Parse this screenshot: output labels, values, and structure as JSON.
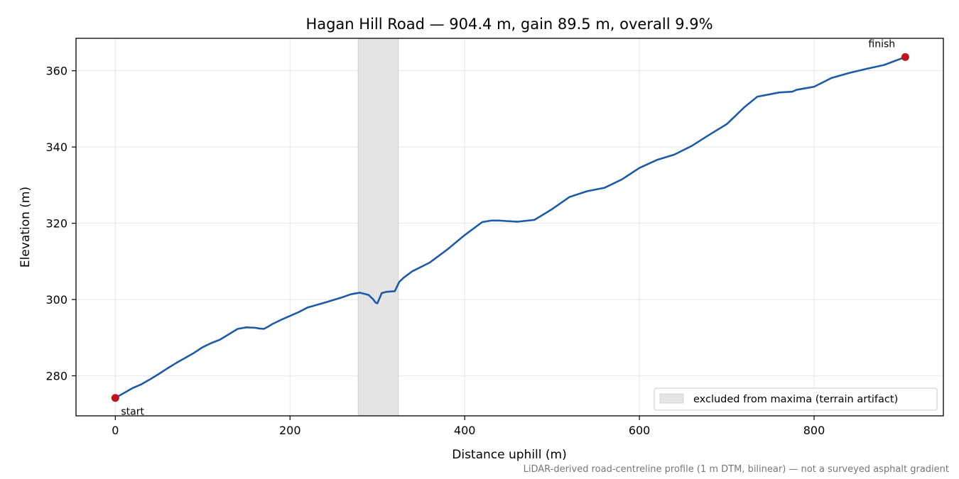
{
  "chart_data": {
    "type": "line",
    "title": "Hagan Hill Road — 904.4 m, gain 89.5 m, overall 9.9%",
    "xlabel": "Distance uphill (m)",
    "ylabel": "Elevation (m)",
    "xlim": [
      -45,
      948
    ],
    "ylim": [
      269.5,
      368.5
    ],
    "xticks": [
      0,
      200,
      400,
      600,
      800
    ],
    "yticks": [
      280,
      300,
      320,
      340,
      360
    ],
    "grid": true,
    "series": [
      {
        "color": "#1f5aa6",
        "x": [
          0,
          10,
          20,
          30,
          40,
          50,
          60,
          70,
          80,
          90,
          100,
          110,
          120,
          130,
          140,
          150,
          160,
          165,
          170,
          175,
          180,
          190,
          200,
          210,
          220,
          240,
          260,
          270,
          280,
          290,
          295,
          298,
          300,
          305,
          310,
          320,
          325,
          330,
          340,
          360,
          380,
          400,
          420,
          430,
          440,
          460,
          480,
          500,
          520,
          540,
          560,
          580,
          600,
          620,
          640,
          660,
          680,
          700,
          720,
          735,
          760,
          775,
          780,
          800,
          820,
          840,
          860,
          880,
          904.4
        ],
        "y": [
          274.2,
          275.5,
          276.8,
          277.8,
          279.1,
          280.5,
          282.0,
          283.4,
          284.7,
          286.0,
          287.5,
          288.6,
          289.5,
          290.9,
          292.3,
          292.7,
          292.6,
          292.4,
          292.3,
          292.9,
          293.6,
          294.7,
          295.7,
          296.7,
          297.9,
          299.2,
          300.6,
          301.4,
          301.8,
          301.2,
          300.1,
          299.2,
          299.0,
          301.7,
          302.0,
          302.2,
          304.6,
          305.7,
          307.4,
          309.7,
          313.1,
          316.9,
          320.3,
          320.7,
          320.7,
          320.4,
          320.9,
          323.7,
          326.9,
          328.4,
          329.3,
          331.5,
          334.5,
          336.6,
          338.0,
          340.3,
          343.2,
          346.0,
          350.4,
          353.2,
          354.3,
          354.5,
          355.0,
          355.8,
          358.1,
          359.4,
          360.5,
          361.5,
          363.6
        ]
      }
    ],
    "shaded_regions": [
      {
        "x0": 278,
        "x1": 324,
        "color": "#e4e4e4",
        "label": "excluded from maxima (terrain artifact)"
      }
    ],
    "markers": [
      {
        "x": 0,
        "y": 274.2,
        "label": "start",
        "color": "#c0141e"
      },
      {
        "x": 904.4,
        "y": 363.6,
        "label": "finish",
        "color": "#c0141e"
      }
    ],
    "legend": {
      "placement": "lower-right",
      "entries": [
        "excluded from maxima (terrain artifact)"
      ]
    },
    "footnote": "LiDAR-derived road-centreline profile (1 m DTM, bilinear) — not a surveyed asphalt gradient"
  }
}
